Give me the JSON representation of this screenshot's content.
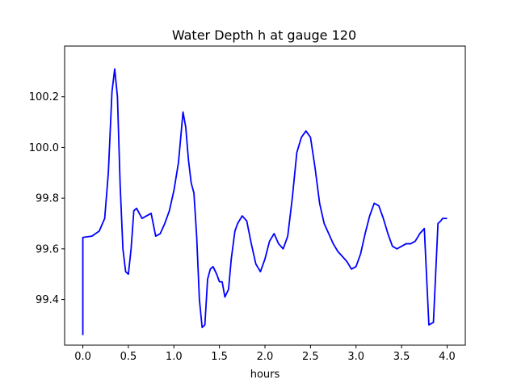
{
  "chart_data": {
    "type": "line",
    "title": "Water Depth h at gauge 120",
    "xlabel": "hours",
    "ylabel": "",
    "xlim": [
      -0.2,
      4.2
    ],
    "ylim": [
      99.22,
      100.4
    ],
    "x_ticks": [
      0.0,
      0.5,
      1.0,
      1.5,
      2.0,
      2.5,
      3.0,
      3.5,
      4.0
    ],
    "x_tick_labels": [
      "0.0",
      "0.5",
      "1.0",
      "1.5",
      "2.0",
      "2.5",
      "3.0",
      "3.5",
      "4.0"
    ],
    "y_ticks": [
      99.4,
      99.6,
      99.8,
      100.0,
      100.2
    ],
    "y_tick_labels": [
      "99.4",
      "99.6",
      "99.8",
      "100.0",
      "100.2"
    ],
    "grid": false,
    "legend": "none",
    "series": [
      {
        "color": "#0000ff",
        "x": [
          0.0,
          0.0,
          0.02,
          0.1,
          0.18,
          0.24,
          0.28,
          0.32,
          0.35,
          0.38,
          0.41,
          0.44,
          0.47,
          0.5,
          0.53,
          0.56,
          0.59,
          0.62,
          0.65,
          0.7,
          0.75,
          0.8,
          0.85,
          0.9,
          0.95,
          1.0,
          1.05,
          1.1,
          1.13,
          1.16,
          1.19,
          1.22,
          1.25,
          1.28,
          1.31,
          1.34,
          1.37,
          1.4,
          1.43,
          1.47,
          1.5,
          1.53,
          1.56,
          1.6,
          1.63,
          1.67,
          1.7,
          1.75,
          1.8,
          1.85,
          1.9,
          1.95,
          2.0,
          2.05,
          2.1,
          2.15,
          2.2,
          2.25,
          2.3,
          2.35,
          2.4,
          2.45,
          2.5,
          2.55,
          2.6,
          2.65,
          2.7,
          2.75,
          2.8,
          2.85,
          2.9,
          2.95,
          3.0,
          3.05,
          3.1,
          3.15,
          3.2,
          3.25,
          3.3,
          3.35,
          3.4,
          3.45,
          3.5,
          3.55,
          3.6,
          3.65,
          3.7,
          3.75,
          3.8,
          3.85,
          3.9,
          3.93,
          3.95,
          3.955,
          3.965,
          3.97,
          3.98,
          4.0
        ],
        "y": [
          99.26,
          99.645,
          99.646,
          99.65,
          99.67,
          99.72,
          99.9,
          100.22,
          100.31,
          100.2,
          99.85,
          99.6,
          99.51,
          99.5,
          99.6,
          99.75,
          99.76,
          99.74,
          99.72,
          99.73,
          99.74,
          99.65,
          99.66,
          99.7,
          99.75,
          99.83,
          99.94,
          100.14,
          100.08,
          99.95,
          99.86,
          99.82,
          99.65,
          99.4,
          99.29,
          99.3,
          99.48,
          99.52,
          99.53,
          99.5,
          99.47,
          99.47,
          99.41,
          99.44,
          99.56,
          99.67,
          99.7,
          99.73,
          99.71,
          99.62,
          99.54,
          99.51,
          99.56,
          99.63,
          99.66,
          99.62,
          99.6,
          99.65,
          99.8,
          99.98,
          100.04,
          100.065,
          100.04,
          99.92,
          99.78,
          99.7,
          99.66,
          99.62,
          99.59,
          99.57,
          99.55,
          99.52,
          99.53,
          99.58,
          99.66,
          99.73,
          99.78,
          99.77,
          99.72,
          99.66,
          99.61,
          99.6,
          99.61,
          99.62,
          99.62,
          99.63,
          99.66,
          99.68,
          99.3,
          99.31,
          99.7,
          99.71,
          99.72,
          99.72,
          99.72,
          99.72,
          99.72,
          99.72
        ]
      }
    ]
  }
}
